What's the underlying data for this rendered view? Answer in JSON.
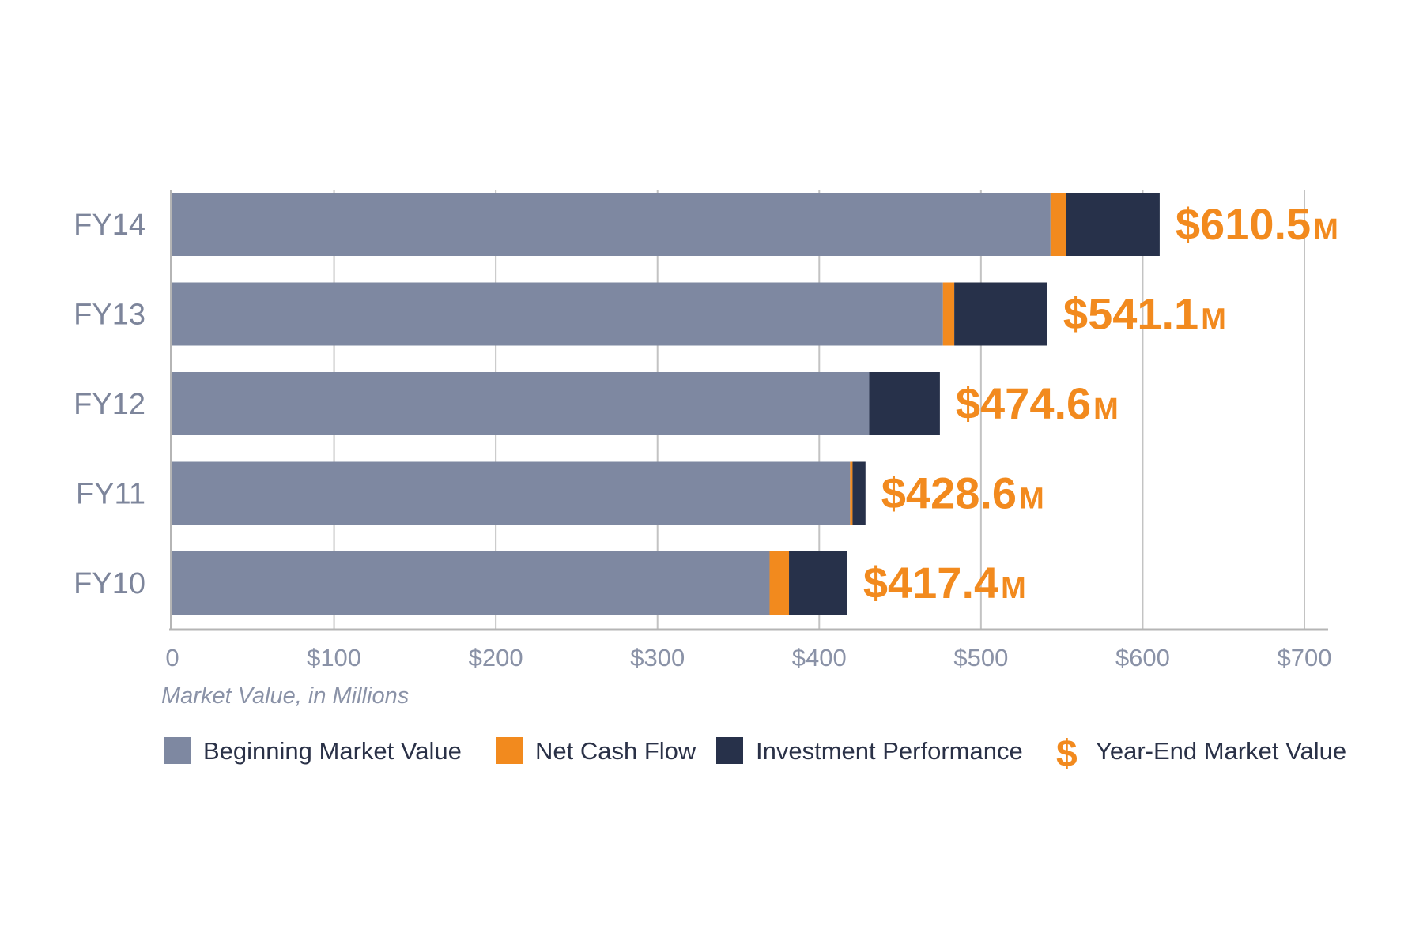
{
  "chart_data": {
    "type": "bar",
    "orientation": "horizontal",
    "stacked": true,
    "categories": [
      "FY14",
      "FY13",
      "FY12",
      "FY11",
      "FY10"
    ],
    "series": [
      {
        "name": "Beginning Market Value",
        "color": "#7e88a1",
        "values": [
          543.0,
          476.5,
          430.9,
          419.1,
          369.3
        ]
      },
      {
        "name": "Net Cash Flow",
        "color": "#f28a1e",
        "values": [
          9.5,
          7.0,
          0.0,
          1.5,
          12.0
        ]
      },
      {
        "name": "Investment Performance",
        "color": "#27314a",
        "values": [
          58.0,
          57.6,
          43.7,
          8.0,
          36.1
        ]
      }
    ],
    "totals": {
      "name": "Year-End Market Value",
      "color": "#f28a1e",
      "labels": [
        "$610.5",
        "$541.1",
        "$474.6",
        "$428.6",
        "$417.4"
      ],
      "unit": "M"
    },
    "xlabel": "Market Value, in Millions",
    "xlim": [
      0,
      700
    ],
    "xticks": [
      0,
      100,
      200,
      300,
      400,
      500,
      600,
      700
    ],
    "xtick_labels": [
      "0",
      "$100",
      "$200",
      "$300",
      "$400",
      "$500",
      "$600",
      "$700"
    ],
    "grid": true,
    "legend_position": "bottom",
    "legend": [
      {
        "label": "Beginning Market Value",
        "marker": "square",
        "color": "#7e88a1"
      },
      {
        "label": "Net Cash Flow",
        "marker": "square",
        "color": "#f28a1e"
      },
      {
        "label": "Investment Performance",
        "marker": "square",
        "color": "#27314a"
      },
      {
        "label": "Year-End Market Value",
        "marker": "$",
        "color": "#f28a1e"
      }
    ]
  }
}
